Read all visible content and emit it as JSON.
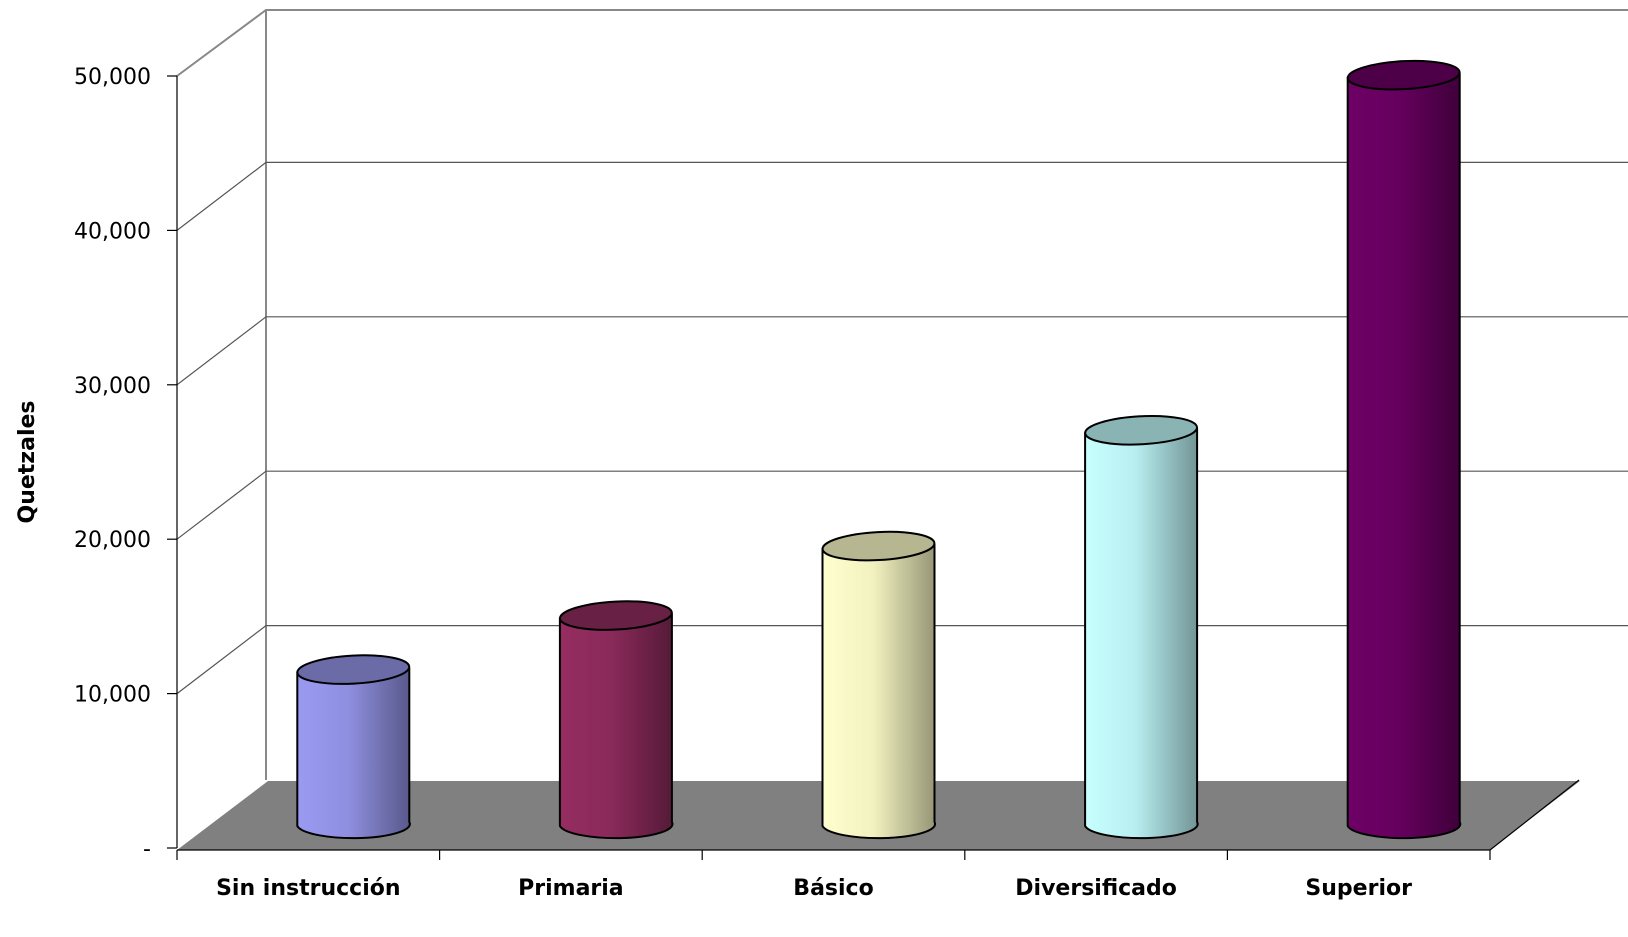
{
  "chart_data": {
    "type": "bar",
    "style": "3d-cylinder",
    "categories": [
      "Sin instrucción",
      "Primaria",
      "Básico",
      "Diversificado",
      "Superior"
    ],
    "values": [
      10000,
      13500,
      18000,
      25500,
      48500
    ],
    "colors": [
      "#8f8fe0",
      "#8a2a5a",
      "#f2f2c0",
      "#b8eef0",
      "#66005e"
    ],
    "ylabel": "Quetzales",
    "xlabel": "",
    "ylim": [
      0,
      50000
    ],
    "yticks": [
      0,
      10000,
      20000,
      30000,
      40000,
      50000
    ],
    "ytick_labels": [
      "-",
      "10,000",
      "20,000",
      "30,000",
      "40,000",
      "50,000"
    ],
    "grid": true,
    "floor_color": "#808080"
  }
}
